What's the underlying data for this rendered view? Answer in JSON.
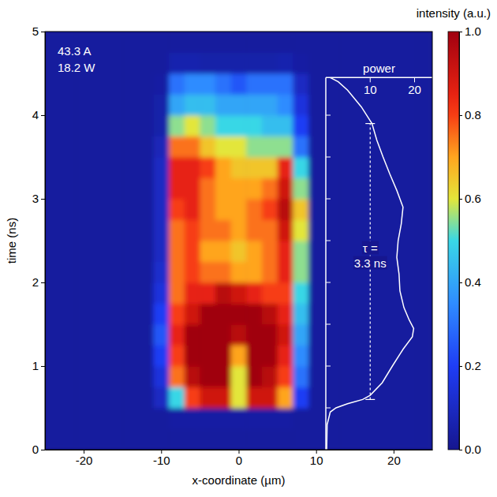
{
  "chart_data": {
    "type": "heatmap",
    "xlabel": "x-coordinate (µm)",
    "ylabel": "time (ns)",
    "xlim": [
      -25,
      25
    ],
    "xticks": [
      -20,
      -10,
      0,
      10,
      20
    ],
    "ylim": [
      0,
      5
    ],
    "yticks": [
      0,
      1,
      2,
      3,
      4,
      5
    ],
    "annotations": [
      "43.3 A",
      "18.2 W"
    ],
    "x": [
      -24,
      -22,
      -20,
      -18,
      -16,
      -14,
      -12,
      -10,
      -8,
      -6,
      -4,
      -2,
      0,
      2,
      4,
      6,
      8,
      10,
      12,
      14,
      16,
      18,
      20,
      22,
      24
    ],
    "y": [
      0.125,
      0.375,
      0.625,
      0.875,
      1.125,
      1.375,
      1.625,
      1.875,
      2.125,
      2.375,
      2.625,
      2.875,
      3.125,
      3.375,
      3.625,
      3.875,
      4.125,
      4.375,
      4.625,
      4.875
    ],
    "z": [
      [
        0.03,
        0.03,
        0.03,
        0.03,
        0.03,
        0.03,
        0.03,
        0.03,
        0.03,
        0.03,
        0.03,
        0.03,
        0.03,
        0.03,
        0.03,
        0.03,
        0.03,
        0.03,
        0.03,
        0.03,
        0.03,
        0.03,
        0.03,
        0.03,
        0.03
      ],
      [
        0.03,
        0.03,
        0.03,
        0.03,
        0.03,
        0.03,
        0.03,
        0.03,
        0.04,
        0.04,
        0.04,
        0.04,
        0.04,
        0.04,
        0.04,
        0.04,
        0.03,
        0.03,
        0.03,
        0.03,
        0.03,
        0.03,
        0.03,
        0.03,
        0.03
      ],
      [
        0.03,
        0.03,
        0.03,
        0.03,
        0.03,
        0.03,
        0.03,
        0.1,
        0.5,
        0.8,
        0.9,
        0.9,
        0.6,
        0.9,
        0.9,
        0.7,
        0.2,
        0.03,
        0.03,
        0.03,
        0.03,
        0.03,
        0.03,
        0.03,
        0.03
      ],
      [
        0.03,
        0.03,
        0.03,
        0.03,
        0.03,
        0.03,
        0.03,
        0.15,
        0.75,
        0.95,
        1,
        1,
        0.6,
        1,
        0.95,
        0.8,
        0.3,
        0.03,
        0.03,
        0.03,
        0.03,
        0.03,
        0.03,
        0.03,
        0.03
      ],
      [
        0.03,
        0.03,
        0.03,
        0.03,
        0.03,
        0.03,
        0.03,
        0.2,
        0.8,
        1,
        1,
        1,
        0.7,
        1,
        1,
        0.85,
        0.35,
        0.03,
        0.03,
        0.03,
        0.03,
        0.03,
        0.03,
        0.03,
        0.03
      ],
      [
        0.03,
        0.03,
        0.03,
        0.03,
        0.03,
        0.03,
        0.03,
        0.25,
        0.85,
        1,
        1,
        1,
        0.95,
        1,
        1,
        0.9,
        0.4,
        0.03,
        0.03,
        0.03,
        0.03,
        0.03,
        0.03,
        0.03,
        0.03
      ],
      [
        0.03,
        0.03,
        0.03,
        0.03,
        0.03,
        0.03,
        0.03,
        0.2,
        0.8,
        0.9,
        1,
        1,
        1,
        1,
        0.95,
        0.85,
        0.45,
        0.03,
        0.03,
        0.03,
        0.03,
        0.03,
        0.03,
        0.03,
        0.03
      ],
      [
        0.03,
        0.03,
        0.03,
        0.03,
        0.03,
        0.03,
        0.03,
        0.15,
        0.75,
        0.85,
        0.85,
        0.95,
        0.9,
        0.85,
        0.8,
        0.8,
        0.5,
        0.03,
        0.03,
        0.03,
        0.03,
        0.03,
        0.03,
        0.03,
        0.03
      ],
      [
        0.03,
        0.03,
        0.03,
        0.03,
        0.03,
        0.03,
        0.03,
        0.12,
        0.75,
        0.8,
        0.75,
        0.75,
        0.7,
        0.7,
        0.75,
        0.85,
        0.55,
        0.03,
        0.03,
        0.03,
        0.03,
        0.03,
        0.03,
        0.03,
        0.03
      ],
      [
        0.03,
        0.03,
        0.03,
        0.03,
        0.03,
        0.03,
        0.03,
        0.1,
        0.75,
        0.8,
        0.7,
        0.7,
        0.65,
        0.7,
        0.75,
        0.85,
        0.55,
        0.03,
        0.03,
        0.03,
        0.03,
        0.03,
        0.03,
        0.03,
        0.03
      ],
      [
        0.03,
        0.03,
        0.03,
        0.03,
        0.03,
        0.03,
        0.03,
        0.1,
        0.75,
        0.8,
        0.75,
        0.75,
        0.7,
        0.75,
        0.75,
        0.9,
        0.6,
        0.03,
        0.03,
        0.03,
        0.03,
        0.03,
        0.03,
        0.03,
        0.03
      ],
      [
        0.03,
        0.03,
        0.03,
        0.03,
        0.03,
        0.03,
        0.03,
        0.1,
        0.8,
        0.85,
        0.75,
        0.7,
        0.7,
        0.75,
        0.8,
        0.95,
        0.65,
        0.03,
        0.03,
        0.03,
        0.03,
        0.03,
        0.03,
        0.03,
        0.03
      ],
      [
        0.03,
        0.03,
        0.03,
        0.03,
        0.03,
        0.03,
        0.03,
        0.1,
        0.85,
        0.85,
        0.75,
        0.7,
        0.7,
        0.7,
        0.75,
        0.9,
        0.55,
        0.03,
        0.03,
        0.03,
        0.03,
        0.03,
        0.03,
        0.03,
        0.03
      ],
      [
        0.03,
        0.03,
        0.03,
        0.03,
        0.03,
        0.03,
        0.03,
        0.1,
        0.85,
        0.85,
        0.8,
        0.7,
        0.65,
        0.65,
        0.65,
        0.85,
        0.5,
        0.03,
        0.03,
        0.03,
        0.03,
        0.03,
        0.03,
        0.03,
        0.03
      ],
      [
        0.03,
        0.03,
        0.03,
        0.03,
        0.03,
        0.03,
        0.03,
        0.08,
        0.75,
        0.75,
        0.65,
        0.6,
        0.6,
        0.55,
        0.55,
        0.55,
        0.3,
        0.03,
        0.03,
        0.03,
        0.03,
        0.03,
        0.03,
        0.03,
        0.03
      ],
      [
        0.03,
        0.03,
        0.03,
        0.03,
        0.03,
        0.03,
        0.03,
        0.05,
        0.55,
        0.6,
        0.55,
        0.5,
        0.5,
        0.5,
        0.45,
        0.45,
        0.2,
        0.03,
        0.03,
        0.03,
        0.03,
        0.03,
        0.03,
        0.03,
        0.03
      ],
      [
        0.03,
        0.03,
        0.03,
        0.03,
        0.03,
        0.03,
        0.03,
        0.05,
        0.4,
        0.45,
        0.45,
        0.4,
        0.4,
        0.4,
        0.4,
        0.35,
        0.15,
        0.03,
        0.03,
        0.03,
        0.03,
        0.03,
        0.03,
        0.03,
        0.03
      ],
      [
        0.03,
        0.03,
        0.03,
        0.03,
        0.03,
        0.03,
        0.03,
        0.04,
        0.3,
        0.35,
        0.35,
        0.3,
        0.25,
        0.3,
        0.3,
        0.3,
        0.1,
        0.03,
        0.03,
        0.03,
        0.03,
        0.03,
        0.03,
        0.03,
        0.03
      ],
      [
        0.03,
        0.03,
        0.03,
        0.03,
        0.03,
        0.03,
        0.03,
        0.03,
        0.06,
        0.06,
        0.05,
        0.05,
        0.05,
        0.05,
        0.05,
        0.06,
        0.04,
        0.03,
        0.03,
        0.03,
        0.03,
        0.03,
        0.03,
        0.03,
        0.03
      ],
      [
        0.03,
        0.03,
        0.03,
        0.03,
        0.03,
        0.03,
        0.03,
        0.03,
        0.03,
        0.03,
        0.03,
        0.03,
        0.03,
        0.03,
        0.03,
        0.03,
        0.03,
        0.03,
        0.03,
        0.03,
        0.03,
        0.03,
        0.03,
        0.03,
        0.03
      ]
    ],
    "colorbar": {
      "title": "intensity (a.u.)",
      "range": [
        0,
        1
      ],
      "ticks": [
        {
          "value": 0,
          "label": "0.0"
        },
        {
          "value": 0.2,
          "label": "0.2"
        },
        {
          "value": 0.4,
          "label": "0.4"
        },
        {
          "value": 0.6,
          "label": "0.6"
        },
        {
          "value": 0.8,
          "label": "0.8"
        },
        {
          "value": 1,
          "label": "1.0"
        }
      ]
    },
    "inset": {
      "type": "line",
      "title": "power",
      "xlim": [
        0,
        24
      ],
      "xticks": [
        10,
        20
      ],
      "ylim": [
        0,
        4.45
      ],
      "time_ticks": [
        0.5,
        1,
        1.5,
        2,
        2.5,
        3,
        3.5,
        4
      ],
      "time": [
        0,
        0.3,
        0.45,
        0.5,
        0.55,
        0.6,
        0.65,
        0.8,
        1.0,
        1.2,
        1.35,
        1.45,
        1.55,
        1.7,
        1.9,
        2.1,
        2.3,
        2.5,
        2.7,
        2.9,
        3.1,
        3.3,
        3.5,
        3.7,
        3.9,
        4.1,
        4.3,
        4.4,
        4.45
      ],
      "power": [
        0.2,
        0.3,
        1,
        2.3,
        4.9,
        8.3,
        10,
        12.7,
        15,
        17.4,
        19.5,
        19.8,
        18.8,
        17.6,
        16.7,
        16.5,
        16,
        16.3,
        17,
        17.4,
        16,
        14.4,
        12.9,
        11.5,
        10.4,
        8,
        4.9,
        2.8,
        1
      ],
      "tau": {
        "time": [
          0.6,
          3.9
        ],
        "power": 10,
        "labels": [
          "τ =",
          "3.3 ns"
        ]
      }
    }
  }
}
